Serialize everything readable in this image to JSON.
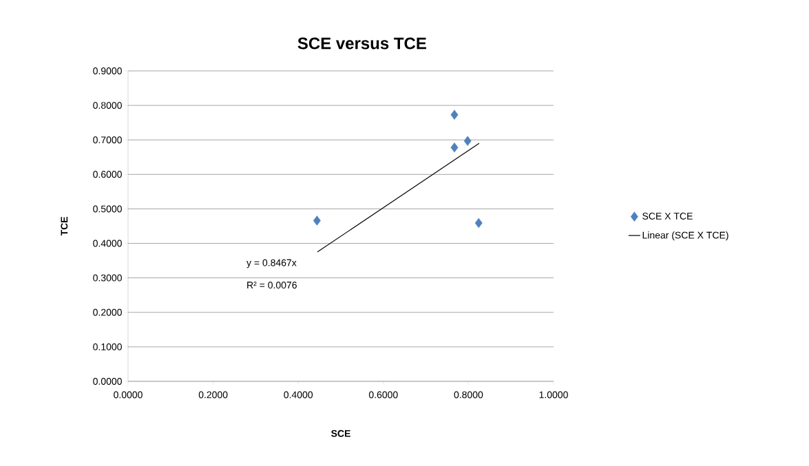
{
  "chart_data": {
    "type": "scatter",
    "title": "SCE  versus TCE",
    "xlabel": "SCE",
    "ylabel": "TCE",
    "series": [
      {
        "name": "SCE X TCE",
        "color": "#4f81bd",
        "marker": "diamond",
        "x": [
          0.444,
          0.767,
          0.767,
          0.798,
          0.824
        ],
        "values": [
          0.466,
          0.773,
          0.678,
          0.697,
          0.459
        ]
      },
      {
        "name": "Linear (SCE X TCE)",
        "type": "line",
        "color": "#000000",
        "marker": "none",
        "x": [
          0.445,
          0.825
        ],
        "values": [
          0.375,
          0.69
        ]
      }
    ],
    "annotations": [
      "y = 0.8467x",
      "R² = 0.0076"
    ],
    "xlim": [
      0,
      1
    ],
    "ylim": [
      0,
      0.9
    ],
    "xticks": [
      {
        "value": 0,
        "label": "0.0000"
      },
      {
        "value": 0.2,
        "label": "0.2000"
      },
      {
        "value": 0.4,
        "label": "0.4000"
      },
      {
        "value": 0.6,
        "label": "0.6000"
      },
      {
        "value": 0.8,
        "label": "0.8000"
      },
      {
        "value": 1,
        "label": "1.0000"
      }
    ],
    "yticks": [
      {
        "value": 0,
        "label": "0.0000"
      },
      {
        "value": 0.1,
        "label": "0.1000"
      },
      {
        "value": 0.2,
        "label": "0.2000"
      },
      {
        "value": 0.3,
        "label": "0.3000"
      },
      {
        "value": 0.4,
        "label": "0.4000"
      },
      {
        "value": 0.5,
        "label": "0.5000"
      },
      {
        "value": 0.6,
        "label": "0.6000"
      },
      {
        "value": 0.7,
        "label": "0.7000"
      },
      {
        "value": 0.8,
        "label": "0.8000"
      },
      {
        "value": 0.9,
        "label": "0.9000"
      }
    ],
    "grid": "y",
    "legend": "right"
  }
}
